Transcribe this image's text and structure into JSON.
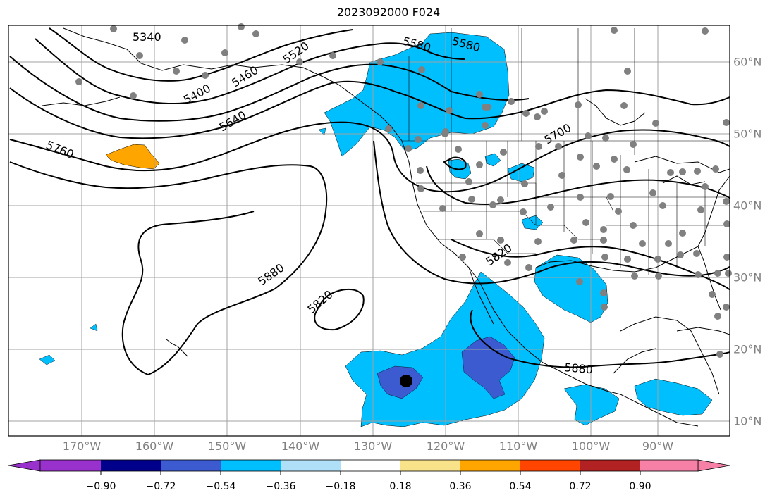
{
  "title": "2023092000 F024",
  "lon_labels": [
    "170°W",
    "160°W",
    "150°W",
    "140°W",
    "130°W",
    "120°W",
    "110°W",
    "100°W",
    "90°W"
  ],
  "lat_labels": [
    "10°N",
    "20°N",
    "30°N",
    "40°N",
    "50°N",
    "60°N"
  ],
  "contour_labels": [
    "5340",
    "5400",
    "5460",
    "5520",
    "5580",
    "5580",
    "5640",
    "5700",
    "5760",
    "5820",
    "5820",
    "5880",
    "5880"
  ],
  "colorbar": {
    "tick_labels": [
      "−0.90",
      "−0.72",
      "−0.54",
      "−0.36",
      "−0.18",
      "0.18",
      "0.36",
      "0.54",
      "0.72",
      "0.90"
    ],
    "colors": [
      "#9932cc",
      "#00008b",
      "#3c5bd1",
      "#00bfff",
      "#b0e0f8",
      "#ffffff",
      "#f8e38a",
      "#ffa500",
      "#ff4500",
      "#b22222",
      "#f780a6"
    ]
  },
  "colors": {
    "land_outline": "#000000",
    "grid": "#a0a0a0",
    "contour": "#000000",
    "station_dot": "#808080",
    "center_dot": "#000000",
    "fill_light_blue": "#00bfff",
    "fill_dark_blue": "#3c5bd1",
    "fill_orange": "#ffa500"
  }
}
